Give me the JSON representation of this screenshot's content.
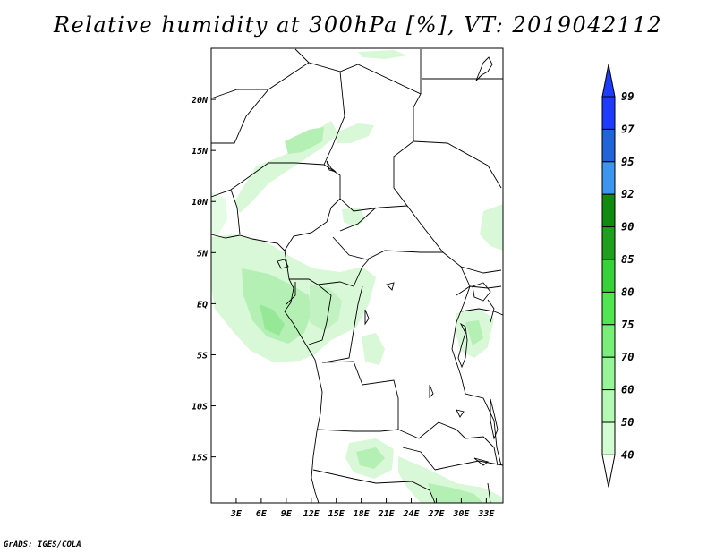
{
  "title": "Relative humidity at 300hPa [%], VT: 2019042112",
  "credit": "GrADS: IGES/COLA",
  "map": {
    "lon_labels": [
      "3E",
      "6E",
      "9E",
      "12E",
      "15E",
      "18E",
      "21E",
      "24E",
      "27E",
      "30E",
      "33E"
    ],
    "lat_labels": [
      "20N",
      "15N",
      "10N",
      "5N",
      "EQ",
      "5S",
      "10S",
      "15S"
    ],
    "lon_values": [
      3,
      6,
      9,
      12,
      15,
      18,
      21,
      24,
      27,
      30,
      33
    ],
    "lat_values": [
      20,
      15,
      10,
      5,
      0,
      -5,
      -10,
      -15
    ],
    "lon_range": [
      0,
      35
    ],
    "lat_range": [
      -19.5,
      25
    ]
  },
  "colorbar": {
    "labels": [
      "99",
      "97",
      "95",
      "92",
      "90",
      "85",
      "80",
      "75",
      "70",
      "60",
      "50",
      "40"
    ],
    "colors": [
      "#1e3cff",
      "#1f64d9",
      "#3c96f0",
      "#0f8c0f",
      "#1ea01e",
      "#37d237",
      "#50e650",
      "#78f078",
      "#96f596",
      "#b4fab4",
      "#d2fcd2",
      "#f0fff0"
    ],
    "top_color": "#1e3cff"
  }
}
